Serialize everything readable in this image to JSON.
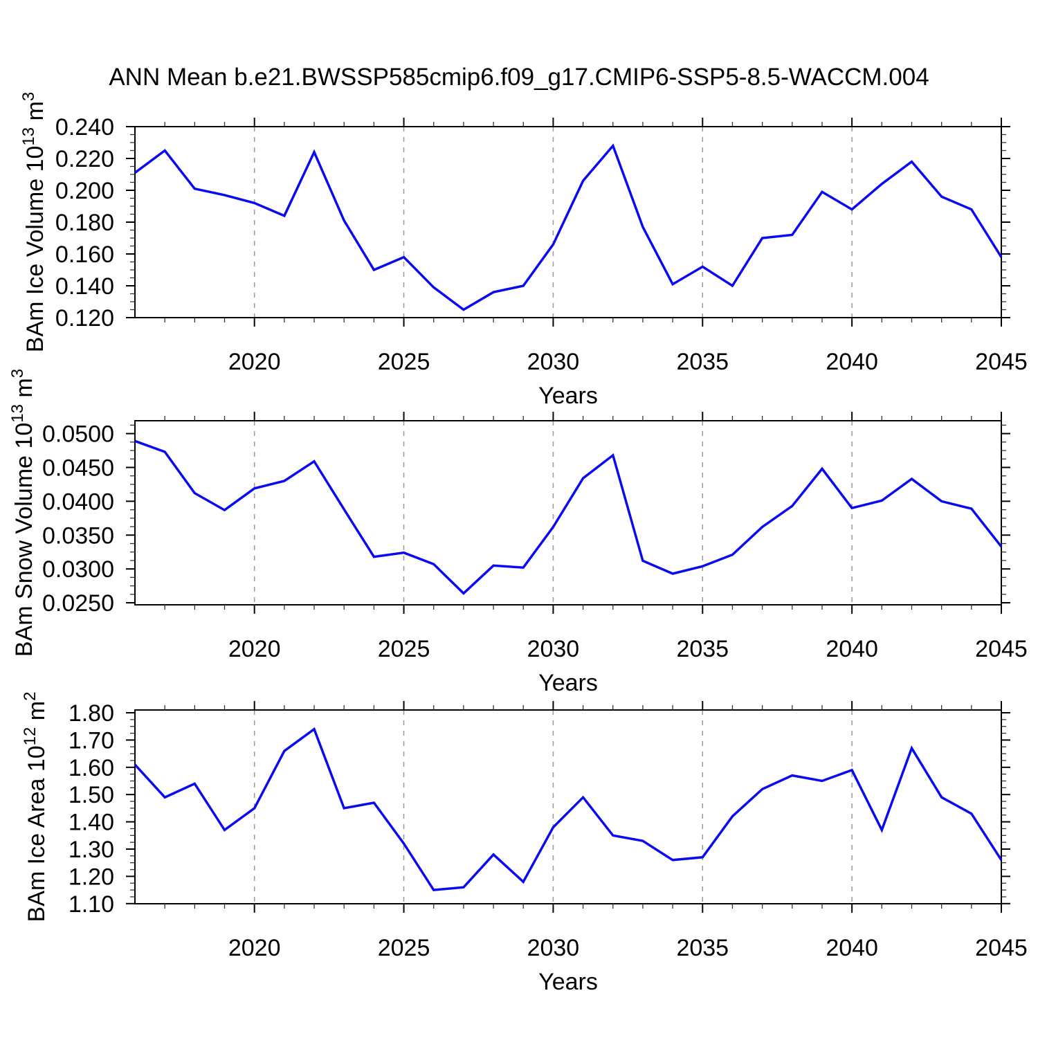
{
  "title": "ANN Mean b.e21.BWSSP585cmip6.f09_g17.CMIP6-SSP5-8.5-WACCM.004",
  "colors": {
    "line": "#0a0af0",
    "grid": "#999999",
    "frame": "#000000",
    "minor_tick": "#333333",
    "text": "#000000",
    "background": "#ffffff"
  },
  "x_axis": {
    "label": "Years",
    "range": [
      2016,
      2045
    ],
    "tick_labels": [
      "2020",
      "2025",
      "2030",
      "2035",
      "2040",
      "2045"
    ],
    "tick_years": [
      2020,
      2025,
      2030,
      2035,
      2040,
      2045
    ],
    "minor_step_years": 1,
    "grid_years": [
      2020,
      2025,
      2030,
      2035,
      2040
    ]
  },
  "years": [
    2016,
    2017,
    2018,
    2019,
    2020,
    2021,
    2022,
    2023,
    2024,
    2025,
    2026,
    2027,
    2028,
    2029,
    2030,
    2031,
    2032,
    2033,
    2034,
    2035,
    2036,
    2037,
    2038,
    2039,
    2040,
    2041,
    2042,
    2043,
    2044,
    2045
  ],
  "chart_data": [
    {
      "id": "ice-volume",
      "type": "line",
      "ylabel_text": "BAm Ice Volume 10^13 m^3",
      "ylabel_parts": [
        [
          "t",
          "BAm Ice Volume 10"
        ],
        [
          "s",
          "13"
        ],
        [
          "t",
          " m"
        ],
        [
          "s",
          "3"
        ]
      ],
      "xlabel": "Years",
      "ylim": [
        0.12,
        0.24
      ],
      "grid": "x-dashed",
      "legend": "none",
      "yticks": {
        "values": [
          0.12,
          0.14,
          0.16,
          0.18,
          0.2,
          0.22,
          0.24
        ],
        "labels": [
          "0.120",
          "0.140",
          "0.160",
          "0.180",
          "0.200",
          "0.220",
          "0.240"
        ],
        "minor_step": 0.005
      },
      "series": [
        {
          "name": "BAm Ice Volume",
          "values": [
            0.211,
            0.225,
            0.201,
            0.197,
            0.192,
            0.184,
            0.224,
            0.181,
            0.15,
            0.158,
            0.139,
            0.125,
            0.136,
            0.14,
            0.166,
            0.206,
            0.228,
            0.177,
            0.141,
            0.152,
            0.14,
            0.17,
            0.172,
            0.199,
            0.188,
            0.204,
            0.218,
            0.196,
            0.188,
            0.158
          ]
        }
      ]
    },
    {
      "id": "snow-volume",
      "type": "line",
      "ylabel_text": "BAm Snow Volume 10^13 m^3",
      "ylabel_parts": [
        [
          "t",
          "BAm Snow Volume 10"
        ],
        [
          "s",
          "13"
        ],
        [
          "t",
          " m"
        ],
        [
          "s",
          "3"
        ]
      ],
      "xlabel": "Years",
      "ylim": [
        0.0247,
        0.0519
      ],
      "grid": "x-dashed",
      "legend": "none",
      "yticks": {
        "values": [
          0.025,
          0.03,
          0.035,
          0.04,
          0.045,
          0.05
        ],
        "labels": [
          "0.0250",
          "0.0300",
          "0.0350",
          "0.0400",
          "0.0450",
          "0.0500"
        ],
        "minor_step": 0.00125
      },
      "series": [
        {
          "name": "BAm Snow Volume",
          "values": [
            0.0489,
            0.0473,
            0.0412,
            0.0387,
            0.0419,
            0.043,
            0.0459,
            0.0388,
            0.0318,
            0.0324,
            0.0307,
            0.0264,
            0.0305,
            0.0302,
            0.0362,
            0.0434,
            0.0468,
            0.0312,
            0.0293,
            0.0304,
            0.0321,
            0.0362,
            0.0393,
            0.0448,
            0.039,
            0.0401,
            0.0433,
            0.04,
            0.0389,
            0.0333
          ]
        }
      ]
    },
    {
      "id": "ice-area",
      "type": "line",
      "ylabel_text": "BAm Ice Area 10^12 m^2",
      "ylabel_parts": [
        [
          "t",
          "BAm Ice Area 10"
        ],
        [
          "s",
          "12"
        ],
        [
          "t",
          " m"
        ],
        [
          "s",
          "2"
        ]
      ],
      "xlabel": "Years",
      "ylim": [
        1.0995,
        1.8102
      ],
      "grid": "x-dashed",
      "legend": "none",
      "yticks": {
        "values": [
          1.1,
          1.2,
          1.3,
          1.4,
          1.5,
          1.6,
          1.7,
          1.8
        ],
        "labels": [
          "1.10",
          "1.20",
          "1.30",
          "1.40",
          "1.50",
          "1.60",
          "1.70",
          "1.80"
        ],
        "minor_step": 0.025
      },
      "series": [
        {
          "name": "BAm Ice Area",
          "values": [
            1.61,
            1.49,
            1.54,
            1.37,
            1.45,
            1.66,
            1.74,
            1.45,
            1.47,
            1.32,
            1.15,
            1.16,
            1.28,
            1.18,
            1.38,
            1.49,
            1.35,
            1.33,
            1.26,
            1.27,
            1.42,
            1.52,
            1.57,
            1.55,
            1.59,
            1.37,
            1.67,
            1.49,
            1.43,
            1.26
          ]
        }
      ]
    }
  ]
}
